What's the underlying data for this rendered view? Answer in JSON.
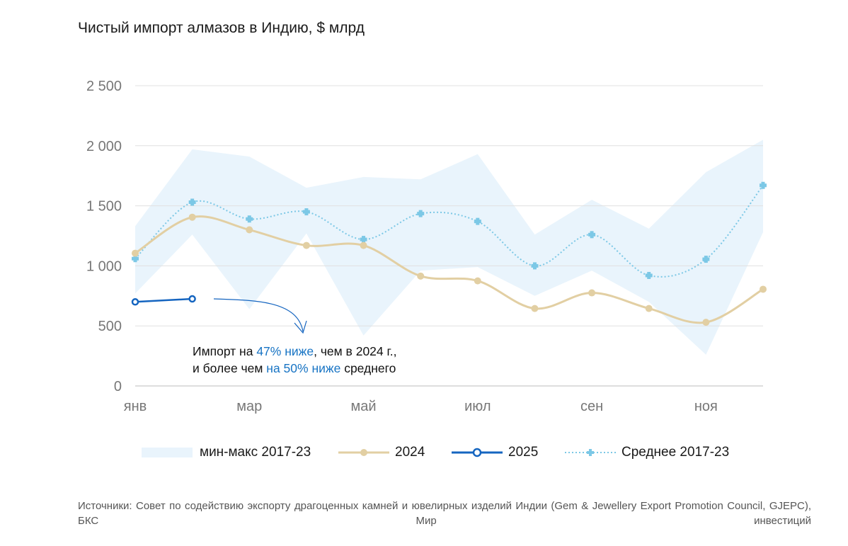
{
  "title": "Чистый импорт алмазов в Индию, $ млрд",
  "chart_data": {
    "type": "line",
    "title": "Чистый импорт алмазов в Индию, $ млрд",
    "x": [
      1,
      2,
      3,
      4,
      5,
      6,
      7,
      8,
      9,
      10,
      11,
      12
    ],
    "x_tick_labels": [
      {
        "x": 1,
        "label": "янв"
      },
      {
        "x": 3,
        "label": "мар"
      },
      {
        "x": 5,
        "label": "май"
      },
      {
        "x": 7,
        "label": "июл"
      },
      {
        "x": 9,
        "label": "сен"
      },
      {
        "x": 11,
        "label": "ноя"
      }
    ],
    "y_ticks": [
      {
        "value": 0,
        "label": "0"
      },
      {
        "value": 500,
        "label": "500"
      },
      {
        "value": 1000,
        "label": "1 000"
      },
      {
        "value": 1500,
        "label": "1 500"
      },
      {
        "value": 2000,
        "label": "2 000"
      },
      {
        "value": 2500,
        "label": "2 500"
      }
    ],
    "ylim": [
      0,
      2500
    ],
    "band": {
      "name": "мин-макс 2017-23",
      "color": "#e9f4fc",
      "min": [
        770,
        1260,
        640,
        1270,
        420,
        960,
        990,
        750,
        960,
        700,
        260,
        1280
      ],
      "max": [
        1330,
        1970,
        1910,
        1650,
        1740,
        1720,
        1930,
        1260,
        1550,
        1310,
        1780,
        2050
      ]
    },
    "series": [
      {
        "name": "2024",
        "color": "#e2cfa3",
        "values": [
          1105,
          1405,
          1300,
          1170,
          1170,
          915,
          875,
          645,
          775,
          645,
          530,
          805
        ]
      },
      {
        "name": "2025",
        "color": "#1565c0",
        "values": [
          700,
          725,
          null,
          null,
          null,
          null,
          null,
          null,
          null,
          null,
          null,
          null
        ]
      },
      {
        "name": "Среднее 2017-23",
        "color": "#7cc8e6",
        "values": [
          1060,
          1530,
          1390,
          1450,
          1220,
          1435,
          1370,
          1000,
          1260,
          920,
          1055,
          1670
        ]
      }
    ]
  },
  "legend": {
    "band": "мин-макс 2017-23",
    "s2024": "2024",
    "s2025": "2025",
    "avg": "Среднее 2017-23"
  },
  "annotation": {
    "line1_a": "Импорт на ",
    "line1_hl": "47% ниже",
    "line1_b": ", чем в 2024 г.,",
    "line2_a": "и более чем ",
    "line2_hl": "на 50% ниже",
    "line2_b": " среднего"
  },
  "sources": "Источники: Совет по содействию экспорту драгоценных камней и ювелирных изделий Индии (Gem & Jewellery Export Promotion Council, GJEPC), БКС Мир инвестиций"
}
